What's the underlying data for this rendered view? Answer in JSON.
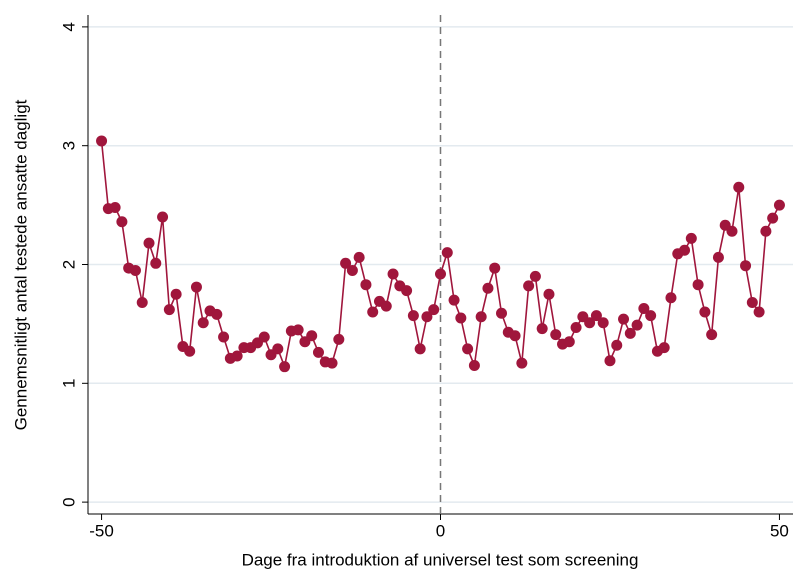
{
  "chart_data": {
    "type": "line",
    "x_label": "Dage fra introduktion af universel test som screening",
    "y_label": "Gennemsnitligt antal testede ansatte dagligt",
    "x": [
      -50,
      -49,
      -48,
      -47,
      -46,
      -45,
      -44,
      -43,
      -42,
      -41,
      -40,
      -39,
      -38,
      -37,
      -36,
      -35,
      -34,
      -33,
      -32,
      -31,
      -30,
      -29,
      -28,
      -27,
      -26,
      -25,
      -24,
      -23,
      -22,
      -21,
      -20,
      -19,
      -18,
      -17,
      -16,
      -15,
      -14,
      -13,
      -12,
      -11,
      -10,
      -9,
      -8,
      -7,
      -6,
      -5,
      -4,
      -3,
      -2,
      -1,
      0,
      1,
      2,
      3,
      4,
      5,
      6,
      7,
      8,
      9,
      10,
      11,
      12,
      13,
      14,
      15,
      16,
      17,
      18,
      19,
      20,
      21,
      22,
      23,
      24,
      25,
      26,
      27,
      28,
      29,
      30,
      31,
      32,
      33,
      34,
      35,
      36,
      37,
      38,
      39,
      40,
      41,
      42,
      43,
      44,
      45,
      46,
      47,
      48,
      49,
      50
    ],
    "series": [
      {
        "color": "#a0163c",
        "values": [
          3.04,
          2.47,
          2.48,
          2.36,
          1.97,
          1.95,
          1.68,
          2.18,
          2.01,
          2.4,
          1.62,
          1.75,
          1.31,
          1.27,
          1.81,
          1.51,
          1.61,
          1.58,
          1.39,
          1.21,
          1.23,
          1.3,
          1.3,
          1.34,
          1.39,
          1.24,
          1.29,
          1.14,
          1.44,
          1.45,
          1.35,
          1.4,
          1.26,
          1.18,
          1.17,
          1.37,
          2.01,
          1.95,
          2.06,
          1.83,
          1.6,
          1.69,
          1.65,
          1.92,
          1.82,
          1.78,
          1.57,
          1.29,
          1.56,
          1.62,
          1.92,
          2.1,
          1.7,
          1.55,
          1.29,
          1.15,
          1.56,
          1.8,
          1.97,
          1.59,
          1.43,
          1.4,
          1.17,
          1.82,
          1.9,
          1.46,
          1.75,
          1.41,
          1.33,
          1.35,
          1.47,
          1.56,
          1.51,
          1.57,
          1.51,
          1.19,
          1.32,
          1.54,
          1.42,
          1.49,
          1.63,
          1.57,
          1.27,
          1.3,
          1.72,
          2.09,
          2.12,
          2.22,
          1.83,
          1.6,
          1.41,
          2.06,
          2.33,
          2.28,
          2.65,
          1.99,
          1.68,
          1.6,
          2.28,
          2.39,
          2.5
        ]
      }
    ],
    "xlim": [
      -52,
      52
    ],
    "ylim": [
      -0.1,
      4.1
    ],
    "xticks": [
      -50,
      0,
      50
    ],
    "yticks": [
      0,
      1,
      2,
      3,
      4
    ],
    "grid": true,
    "vline": 0
  }
}
